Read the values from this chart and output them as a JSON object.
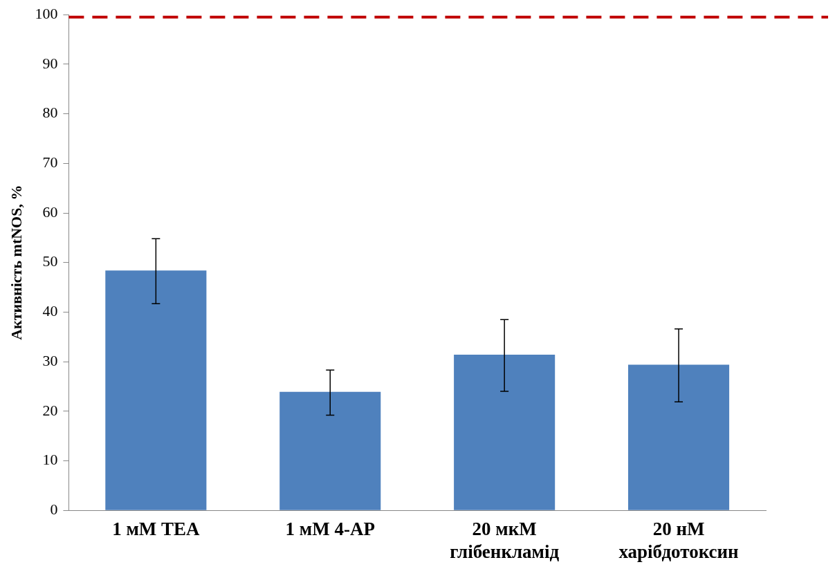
{
  "chart_data": {
    "type": "bar",
    "ylabel": "Активність mtNOS, %",
    "categories": [
      "1 мМ TEA",
      "1 мМ 4-AP",
      "20 мкМ глібенкламід",
      "20 нМ харібдотоксин"
    ],
    "values": [
      48.4,
      23.9,
      31.4,
      29.4
    ],
    "errors": [
      [
        41.7,
        54.8
      ],
      [
        19.2,
        28.3
      ],
      [
        24.0,
        38.5
      ],
      [
        21.9,
        36.6
      ]
    ],
    "color": "#4f81bd",
    "ylim": [
      0,
      100
    ],
    "yticks": [
      0,
      10,
      20,
      30,
      40,
      50,
      60,
      70,
      80,
      90,
      100
    ],
    "ref_lines": [
      {
        "axis": "y",
        "value": 99.5,
        "color": "#c00000",
        "line_style": "dashed"
      }
    ],
    "grid": false,
    "legend": false
  }
}
